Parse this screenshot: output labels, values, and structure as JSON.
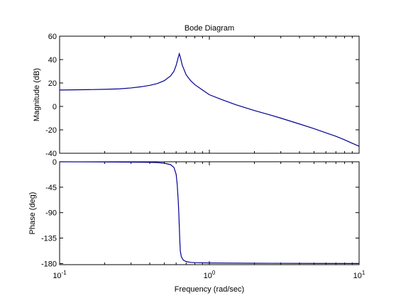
{
  "chart_data": [
    {
      "type": "line",
      "panel": "magnitude",
      "title": "Bode Diagram",
      "ylabel": "Magnitude (dB)",
      "xlabel": "",
      "xscale": "log",
      "xlim": [
        0.1,
        10
      ],
      "ylim": [
        -40,
        60
      ],
      "yticks": [
        -40,
        -20,
        0,
        20,
        40,
        60
      ],
      "ytick_labels": [
        "-40",
        "-20",
        "0",
        "20",
        "40",
        "60"
      ],
      "grid": false,
      "line_color": "#00008f",
      "series": [
        {
          "x": [
            0.1,
            0.15,
            0.2,
            0.25,
            0.3,
            0.35,
            0.4,
            0.45,
            0.5,
            0.55,
            0.58,
            0.6,
            0.62,
            0.63,
            0.64,
            0.66,
            0.7,
            0.75,
            0.8,
            0.9,
            1.0,
            1.2,
            1.5,
            2,
            2.5,
            3,
            4,
            5,
            6,
            7,
            8,
            9,
            10
          ],
          "y": [
            14.0,
            14.3,
            14.6,
            15.0,
            15.8,
            16.8,
            18.0,
            19.6,
            22.0,
            26.0,
            30.0,
            35.0,
            42.0,
            45.0,
            42.0,
            35.0,
            27.0,
            22.0,
            18.6,
            14.0,
            10.0,
            6.0,
            1.5,
            -3.5,
            -7.0,
            -10.0,
            -15.0,
            -19.0,
            -22.5,
            -25.5,
            -28.5,
            -31.5,
            -34.0
          ]
        }
      ]
    },
    {
      "type": "line",
      "panel": "phase",
      "ylabel": "Phase (deg)",
      "xlabel": "Frequency  (rad/sec)",
      "xscale": "log",
      "xlim": [
        0.1,
        10
      ],
      "ylim": [
        -182,
        0
      ],
      "yticks": [
        0,
        -45,
        -90,
        -135,
        -180
      ],
      "ytick_labels": [
        "0",
        "-45",
        "-90",
        "-135",
        "-180"
      ],
      "xtick_base": "10",
      "xtick_exponents": [
        "-1",
        "0",
        "1"
      ],
      "grid": false,
      "line_color": "#00008f",
      "series": [
        {
          "x": [
            0.1,
            0.2,
            0.3,
            0.4,
            0.45,
            0.5,
            0.55,
            0.58,
            0.6,
            0.61,
            0.62,
            0.625,
            0.63,
            0.635,
            0.64,
            0.65,
            0.67,
            0.7,
            0.75,
            0.8,
            1.0,
            2,
            5,
            10
          ],
          "y": [
            0,
            -0.3,
            -0.6,
            -1.0,
            -1.5,
            -2.5,
            -5.0,
            -10.0,
            -22.0,
            -40.0,
            -70.0,
            -90.0,
            -115.0,
            -140.0,
            -158.0,
            -168.0,
            -174.0,
            -176.5,
            -178.0,
            -178.5,
            -179.0,
            -179.5,
            -179.8,
            -180.0
          ]
        }
      ]
    }
  ]
}
